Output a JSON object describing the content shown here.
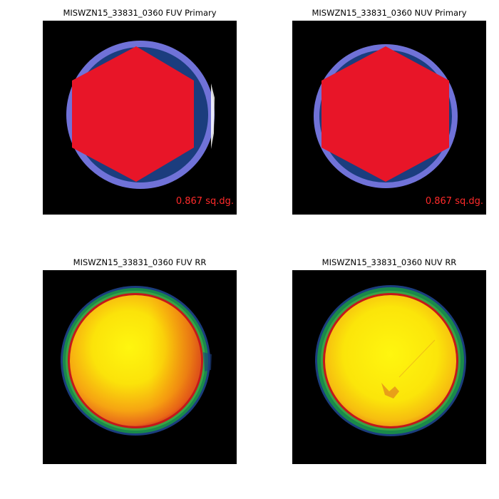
{
  "colors": {
    "background": "#000000",
    "primary_outer_ring": "#7072d8",
    "primary_coverage": "#1b3d7e",
    "primary_hexagon": "#e81528",
    "area_label": "#ff2a2a",
    "rr_outer_green": "#1a8a4a",
    "rr_red_rim": "#c4181a",
    "rr_orange": "#f28c10",
    "rr_yellow": "#fbe30a"
  },
  "panels": [
    {
      "id": "fuv-primary",
      "title": "MISWZN15_33831_0360 FUV Primary",
      "type": "primary",
      "area_label": "0.867 sq.dg."
    },
    {
      "id": "nuv-primary",
      "title": "MISWZN15_33831_0360 NUV Primary",
      "type": "primary",
      "area_label": "0.867 sq.dg."
    },
    {
      "id": "fuv-rr",
      "title": "MISWZN15_33831_0360 FUV RR",
      "type": "relative-response"
    },
    {
      "id": "nuv-rr",
      "title": "MISWZN15_33831_0360 NUV RR",
      "type": "relative-response"
    }
  ]
}
